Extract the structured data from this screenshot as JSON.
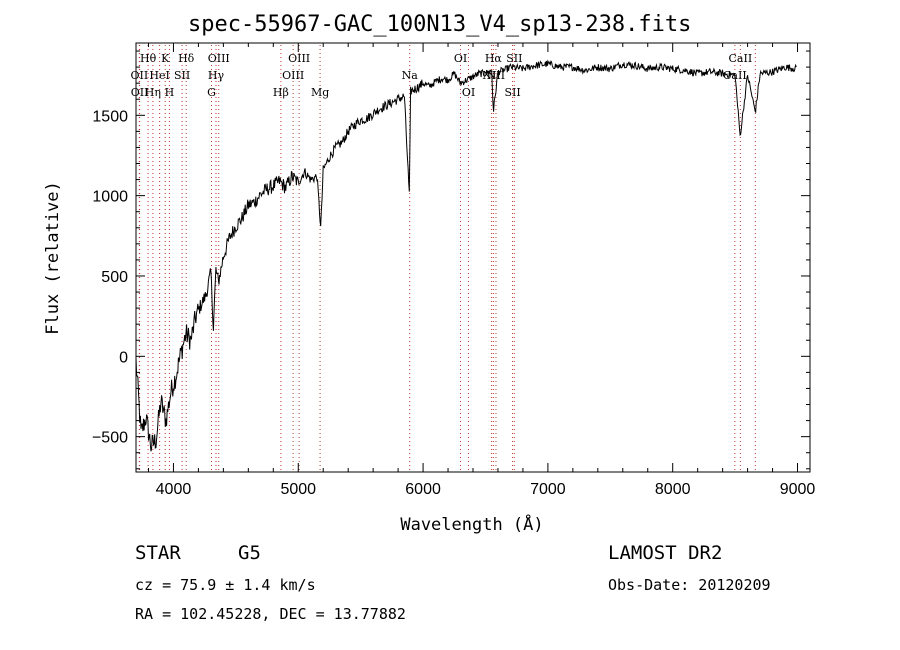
{
  "chart_data": {
    "type": "line",
    "title": "spec-55967-GAC_100N13_V4_sp13-238.fits",
    "xlabel": "Wavelength (Å)",
    "ylabel": "Flux (relative)",
    "xlim": [
      3700,
      9100
    ],
    "ylim": [
      -720,
      1950
    ],
    "x_ticks": [
      4000,
      5000,
      6000,
      7000,
      8000,
      9000
    ],
    "y_ticks": [
      -500,
      0,
      500,
      1000,
      1500
    ],
    "grid": false,
    "series": [
      {
        "x": [
          3700,
          3740,
          3780,
          3820,
          3860,
          3900,
          3940,
          3980,
          4020,
          4060,
          4100,
          4140,
          4180,
          4220,
          4260,
          4300,
          4320,
          4340,
          4360,
          4400,
          4450,
          4500,
          4550,
          4600,
          4650,
          4700,
          4750,
          4800,
          4850,
          4900,
          4950,
          5000,
          5050,
          5100,
          5150,
          5180,
          5200,
          5250,
          5300,
          5350,
          5400,
          5450,
          5500,
          5550,
          5600,
          5650,
          5700,
          5750,
          5800,
          5850,
          5890,
          5900,
          5950,
          6000,
          6050,
          6100,
          6150,
          6200,
          6250,
          6300,
          6350,
          6400,
          6450,
          6500,
          6550,
          6563,
          6600,
          6650,
          6700,
          6800,
          6900,
          7000,
          7100,
          7200,
          7300,
          7400,
          7500,
          7600,
          7700,
          7800,
          7900,
          8000,
          8100,
          8200,
          8300,
          8400,
          8500,
          8540,
          8600,
          8662,
          8700,
          8800,
          8900,
          8990
        ],
        "y": [
          -30,
          -480,
          -380,
          -560,
          -520,
          -280,
          -400,
          -220,
          -120,
          20,
          140,
          100,
          250,
          320,
          380,
          520,
          180,
          540,
          460,
          620,
          740,
          810,
          860,
          940,
          960,
          1010,
          1040,
          1060,
          1090,
          1050,
          1120,
          1080,
          1150,
          1100,
          1120,
          800,
          1160,
          1240,
          1300,
          1330,
          1400,
          1440,
          1470,
          1480,
          1510,
          1540,
          1560,
          1580,
          1600,
          1620,
          1000,
          1650,
          1670,
          1700,
          1680,
          1710,
          1730,
          1720,
          1760,
          1700,
          1720,
          1740,
          1760,
          1760,
          1780,
          1520,
          1770,
          1780,
          1800,
          1790,
          1810,
          1820,
          1800,
          1800,
          1780,
          1800,
          1790,
          1820,
          1810,
          1790,
          1800,
          1790,
          1780,
          1760,
          1770,
          1760,
          1750,
          1370,
          1750,
          1520,
          1760,
          1770,
          1800,
          1790
        ]
      }
    ],
    "line_labels": [
      {
        "text": "Hθ",
        "x": 3797,
        "row": 0
      },
      {
        "text": "K",
        "x": 3934,
        "row": 0
      },
      {
        "text": "Hδ",
        "x": 4102,
        "row": 0
      },
      {
        "text": "OIII",
        "x": 4363,
        "row": 0
      },
      {
        "text": "OIII",
        "x": 5007,
        "row": 0
      },
      {
        "text": "OI",
        "x": 6300,
        "row": 0
      },
      {
        "text": "Hα",
        "x": 6563,
        "row": 0
      },
      {
        "text": "SII",
        "x": 6731,
        "row": 0
      },
      {
        "text": "CaII",
        "x": 8542,
        "row": 0
      },
      {
        "text": "OII",
        "x": 3727,
        "row": 1
      },
      {
        "text": "HeI",
        "x": 3889,
        "row": 1
      },
      {
        "text": "SII",
        "x": 4069,
        "row": 1
      },
      {
        "text": "Hγ",
        "x": 4341,
        "row": 1
      },
      {
        "text": "OIII",
        "x": 4959,
        "row": 1
      },
      {
        "text": "Na",
        "x": 5893,
        "row": 1
      },
      {
        "text": "NII",
        "x": 6548,
        "row": 1
      },
      {
        "text": "NII",
        "x": 6584,
        "row": 1
      },
      {
        "text": "CaII",
        "x": 8498,
        "row": 1
      },
      {
        "text": "OII",
        "x": 3729,
        "row": 2
      },
      {
        "text": "Hη",
        "x": 3835,
        "row": 2
      },
      {
        "text": "H",
        "x": 3968,
        "row": 2
      },
      {
        "text": "G",
        "x": 4305,
        "row": 2
      },
      {
        "text": "Hβ",
        "x": 4861,
        "row": 2
      },
      {
        "text": "Mg",
        "x": 5175,
        "row": 2
      },
      {
        "text": "OI",
        "x": 6364,
        "row": 2
      },
      {
        "text": "SII",
        "x": 6717,
        "row": 2
      }
    ],
    "line_markers": [
      3727,
      3729,
      3797,
      3835,
      3889,
      3934,
      3968,
      4069,
      4102,
      4305,
      4341,
      4363,
      4861,
      4959,
      5007,
      5175,
      5893,
      6300,
      6364,
      6548,
      6563,
      6584,
      6717,
      6731,
      8498,
      8542,
      8662
    ]
  },
  "info": {
    "object_class": "STAR",
    "subclass": "G5",
    "survey": "LAMOST DR2",
    "velocity": "cz = 75.9 ± 1.4 km/s",
    "obs_date": "Obs-Date: 20120209",
    "coords": "RA = 102.45228, DEC =  13.77882"
  }
}
